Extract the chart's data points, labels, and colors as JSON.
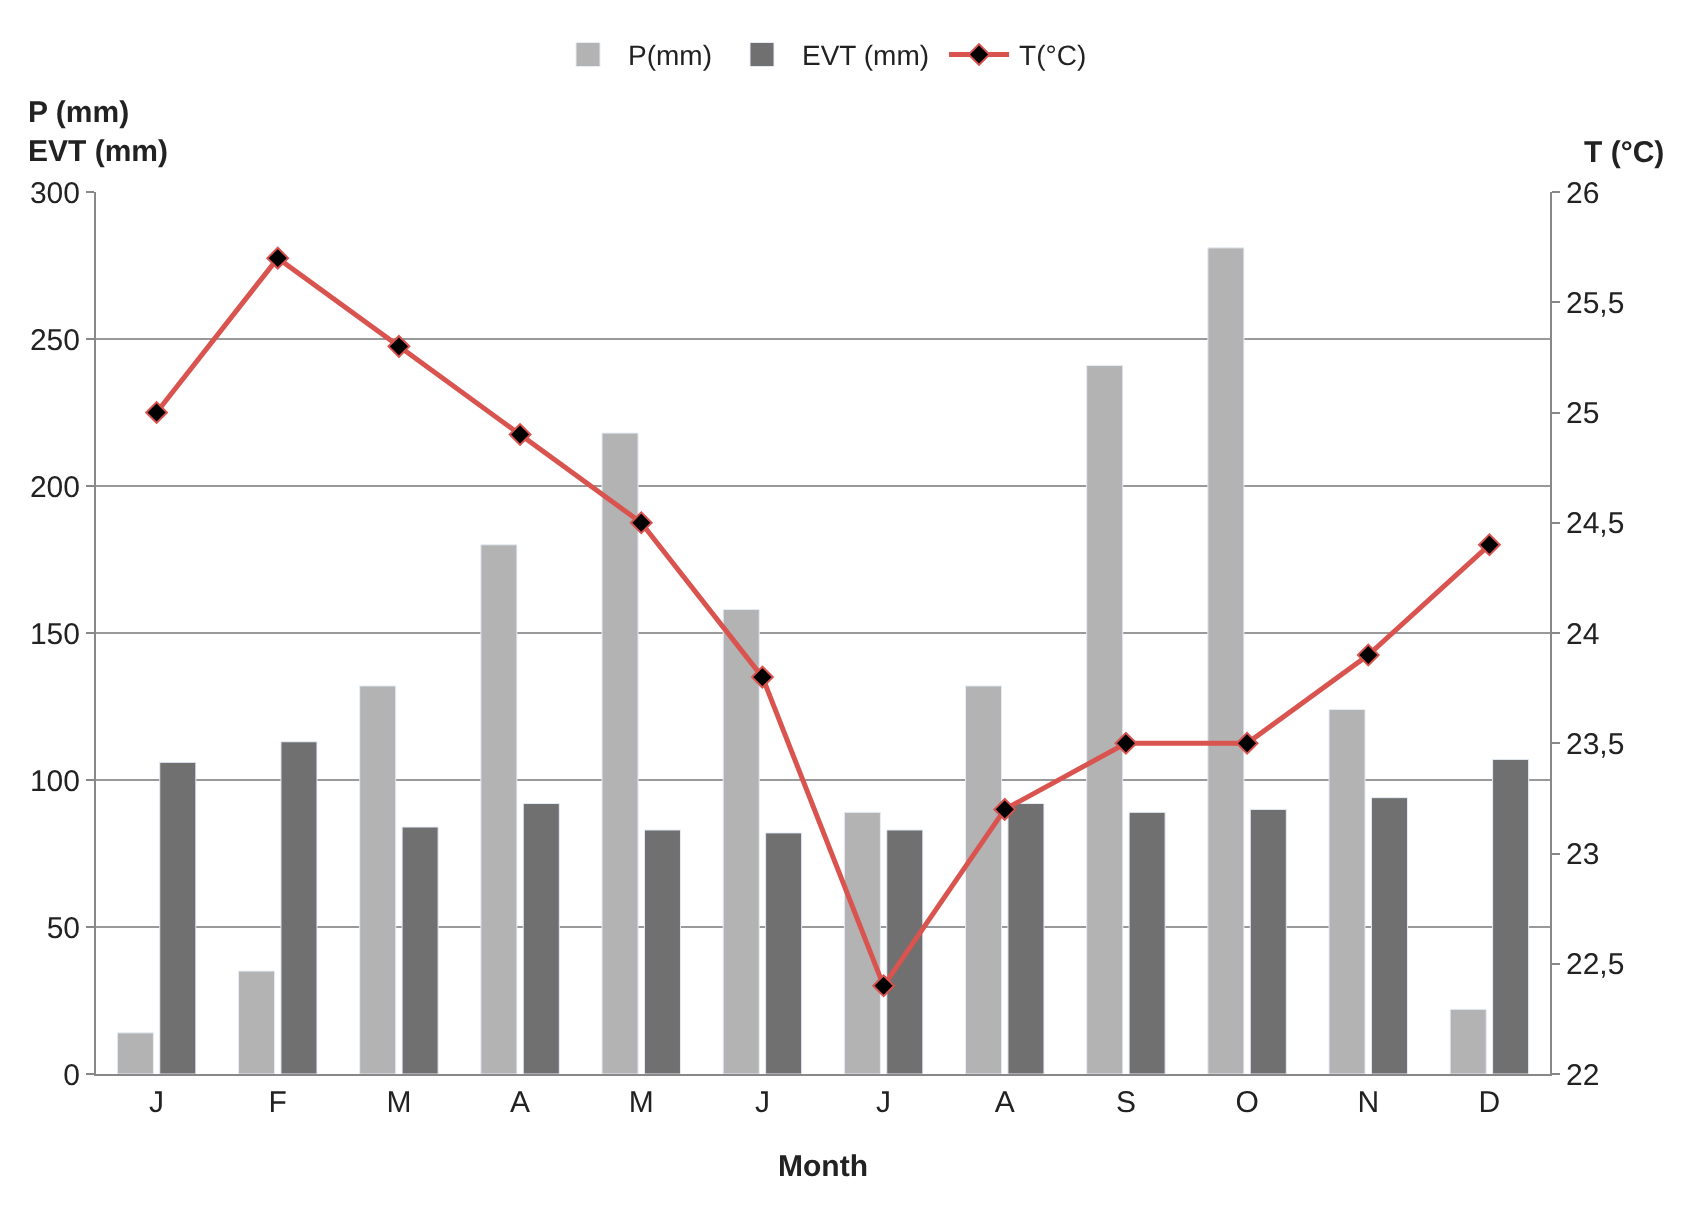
{
  "chart_data": {
    "type": "bar",
    "categories": [
      "J",
      "F",
      "M",
      "A",
      "M",
      "J",
      "J",
      "A",
      "S",
      "O",
      "N",
      "D"
    ],
    "series": [
      {
        "name": "P(mm)",
        "color": "#b3b3b3",
        "values": [
          14,
          35,
          132,
          180,
          218,
          158,
          89,
          132,
          241,
          281,
          124,
          22
        ]
      },
      {
        "name": "EVT (mm)",
        "color": "#707070",
        "values": [
          106,
          113,
          84,
          92,
          83,
          82,
          83,
          92,
          89,
          90,
          94,
          107
        ]
      },
      {
        "name": "T(°C)",
        "type": "line",
        "axis": "y2",
        "color": "#d9534f",
        "marker": "diamond",
        "values": [
          25,
          25.7,
          25.3,
          24.9,
          24.5,
          23.8,
          22.4,
          23.2,
          23.5,
          23.5,
          23.9,
          24.4
        ]
      }
    ],
    "xlabel": "Month",
    "ylabel": "P (mm)\nEVT (mm)",
    "y2label": "T (°C)",
    "ylim": [
      0,
      300
    ],
    "yticks": [
      0,
      50,
      100,
      150,
      200,
      250,
      300
    ],
    "y2lim": [
      22,
      26
    ],
    "y2ticks": [
      22,
      {
        "value": 22.5,
        "label": "22,5"
      },
      23,
      {
        "value": 23.5,
        "label": "23,5"
      },
      24,
      {
        "value": 24.5,
        "label": "24,5"
      },
      25,
      {
        "value": 25.5,
        "label": "25,5"
      },
      26
    ],
    "grid": "y",
    "legend": "top"
  }
}
